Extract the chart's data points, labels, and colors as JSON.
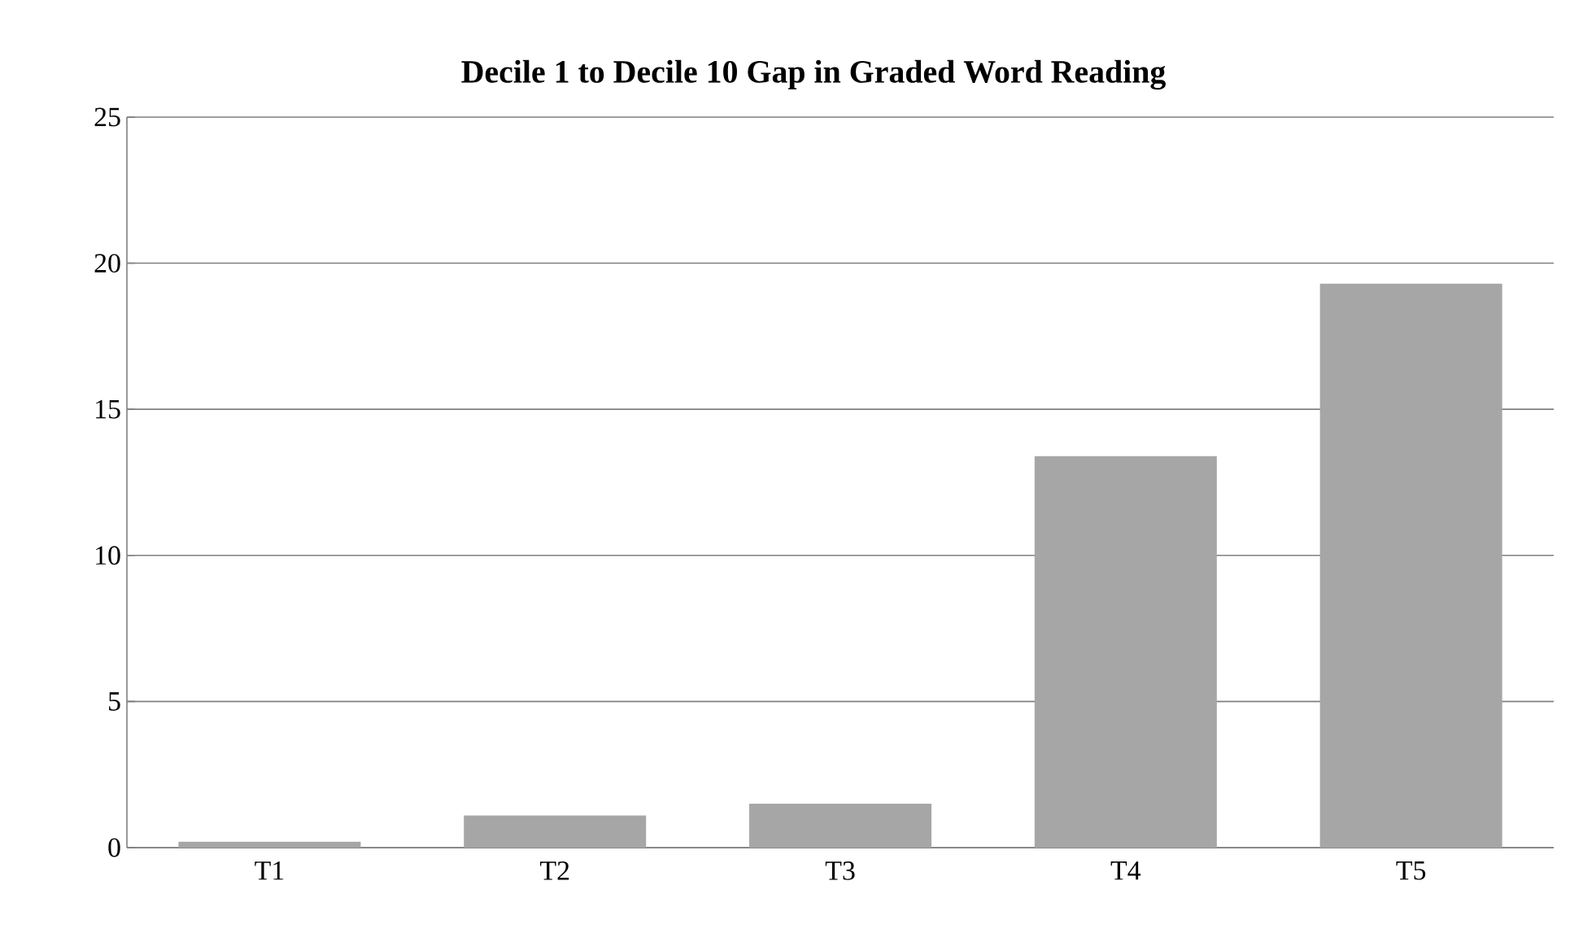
{
  "chart_data": {
    "type": "bar",
    "title": "Decile 1 to Decile 10  Gap in Graded Word Reading",
    "categories": [
      "T1",
      "T2",
      "T3",
      "T4",
      "T5"
    ],
    "values": [
      0.2,
      1.1,
      1.5,
      13.4,
      19.3
    ],
    "color": "#a6a6a6",
    "ylim": [
      0,
      25
    ],
    "yticks": [
      0,
      5,
      10,
      15,
      20,
      25
    ],
    "grid": "y"
  }
}
